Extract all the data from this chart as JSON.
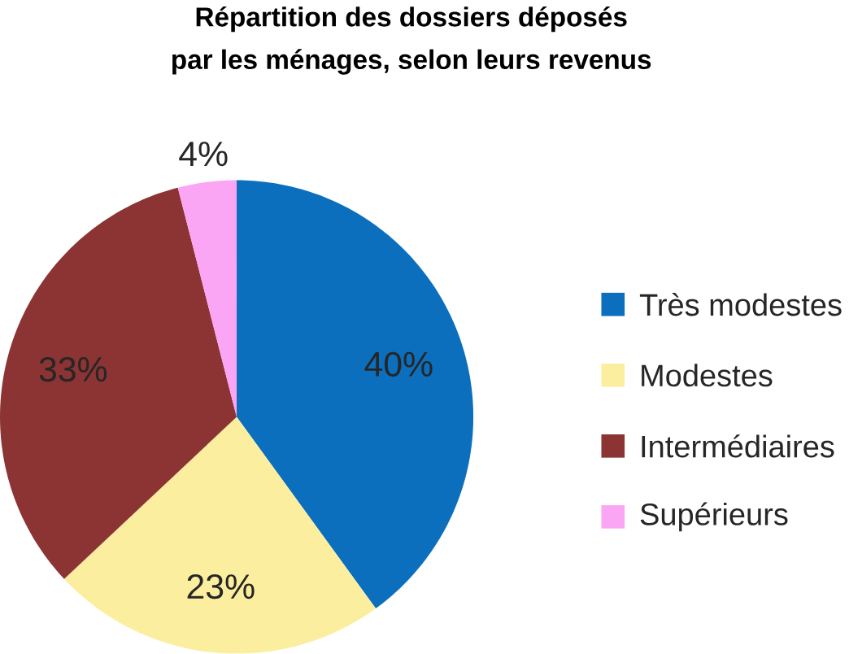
{
  "chart_data": {
    "type": "pie",
    "title": "Répartition des dossiers déposés",
    "subtitle": "par  les ménages, selon leurs revenus",
    "categories": [
      "Très modestes",
      "Modestes",
      "Intermédiaires",
      "Supérieurs"
    ],
    "values": [
      40,
      23,
      33,
      4
    ],
    "value_labels": [
      "40%",
      "23%",
      "33%",
      "4%"
    ],
    "colors": [
      "#0b6fbd",
      "#fbee9e",
      "#8c3333",
      "#fba6f5"
    ],
    "legend": "right"
  }
}
